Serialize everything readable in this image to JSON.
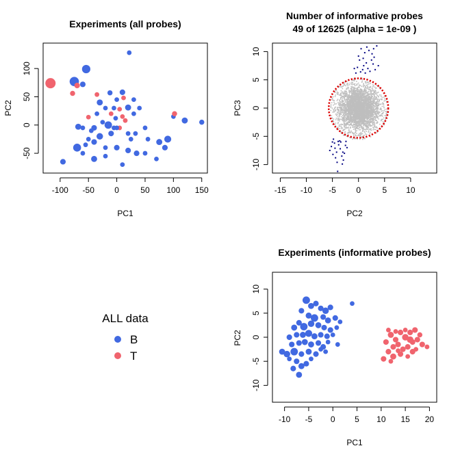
{
  "colors": {
    "B": "#4169E1",
    "T": "#F0646E",
    "probe_bg": "#BEBEBE",
    "probe_hi": "#000080",
    "circle": "#DD0000"
  },
  "chart_data": [
    {
      "id": "p1",
      "type": "scatter",
      "title": "Experiments (all probes)",
      "xlabel": "PC1",
      "ylabel": "PC2",
      "xlim": [
        -130,
        160
      ],
      "ylim": [
        -85,
        145
      ],
      "xticks": [
        "-100",
        "-50",
        "0",
        "50",
        "100",
        "150"
      ],
      "yticks": [
        "-50",
        "0",
        "50",
        "100"
      ],
      "points": [
        {
          "x": -117,
          "y": 74,
          "c": "T",
          "s": 2.2
        },
        {
          "x": -75,
          "y": 77,
          "c": "B",
          "s": 2.0
        },
        {
          "x": -54,
          "y": 99,
          "c": "B",
          "s": 1.8
        },
        {
          "x": -70,
          "y": 70,
          "c": "T",
          "s": 1.2
        },
        {
          "x": -60,
          "y": 72,
          "c": "B",
          "s": 1.2
        },
        {
          "x": -78,
          "y": 56,
          "c": "T",
          "s": 1.1
        },
        {
          "x": -68,
          "y": -3,
          "c": "B",
          "s": 1.3
        },
        {
          "x": -50,
          "y": 14,
          "c": "T",
          "s": 1.0
        },
        {
          "x": -35,
          "y": 54,
          "c": "T",
          "s": 1.0
        },
        {
          "x": -30,
          "y": 40,
          "c": "B",
          "s": 1.3
        },
        {
          "x": -12,
          "y": 57,
          "c": "B",
          "s": 1.1
        },
        {
          "x": 0,
          "y": 45,
          "c": "B",
          "s": 1.0
        },
        {
          "x": 12,
          "y": 48,
          "c": "T",
          "s": 1.0
        },
        {
          "x": 22,
          "y": 128,
          "c": "B",
          "s": 1.0
        },
        {
          "x": 10,
          "y": 58,
          "c": "B",
          "s": 1.2
        },
        {
          "x": 30,
          "y": 45,
          "c": "B",
          "s": 1.0
        },
        {
          "x": -20,
          "y": 30,
          "c": "B",
          "s": 1.0
        },
        {
          "x": 5,
          "y": 28,
          "c": "T",
          "s": 1.0
        },
        {
          "x": 20,
          "y": 31,
          "c": "B",
          "s": 1.3
        },
        {
          "x": -10,
          "y": 20,
          "c": "T",
          "s": 1.0
        },
        {
          "x": -2,
          "y": 12,
          "c": "B",
          "s": 1.0
        },
        {
          "x": 10,
          "y": 15,
          "c": "T",
          "s": 1.0
        },
        {
          "x": 15,
          "y": 8,
          "c": "T",
          "s": 1.0
        },
        {
          "x": 30,
          "y": 20,
          "c": "B",
          "s": 1.0
        },
        {
          "x": -25,
          "y": 5,
          "c": "B",
          "s": 1.0
        },
        {
          "x": -40,
          "y": -5,
          "c": "B",
          "s": 1.2
        },
        {
          "x": -30,
          "y": -20,
          "c": "B",
          "s": 1.4
        },
        {
          "x": -10,
          "y": -15,
          "c": "B",
          "s": 1.2
        },
        {
          "x": 5,
          "y": -5,
          "c": "T",
          "s": 1.0
        },
        {
          "x": 20,
          "y": -15,
          "c": "B",
          "s": 1.0
        },
        {
          "x": -5,
          "y": -5,
          "c": "B",
          "s": 1.0
        },
        {
          "x": -15,
          "y": 0,
          "c": "B",
          "s": 1.6
        },
        {
          "x": -40,
          "y": -30,
          "c": "B",
          "s": 1.2
        },
        {
          "x": -50,
          "y": -25,
          "c": "B",
          "s": 1.0
        },
        {
          "x": -70,
          "y": -40,
          "c": "B",
          "s": 1.7
        },
        {
          "x": -95,
          "y": -65,
          "c": "B",
          "s": 1.2
        },
        {
          "x": -60,
          "y": -50,
          "c": "B",
          "s": 1.0
        },
        {
          "x": -40,
          "y": -60,
          "c": "B",
          "s": 1.3
        },
        {
          "x": -20,
          "y": -55,
          "c": "B",
          "s": 1.0
        },
        {
          "x": 0,
          "y": -40,
          "c": "B",
          "s": 1.2
        },
        {
          "x": 10,
          "y": -70,
          "c": "B",
          "s": 1.0
        },
        {
          "x": 20,
          "y": -45,
          "c": "B",
          "s": 1.2
        },
        {
          "x": 35,
          "y": -50,
          "c": "B",
          "s": 1.2
        },
        {
          "x": 33,
          "y": -15,
          "c": "B",
          "s": 1.0
        },
        {
          "x": 50,
          "y": -5,
          "c": "B",
          "s": 1.0
        },
        {
          "x": 55,
          "y": -25,
          "c": "B",
          "s": 1.0
        },
        {
          "x": 75,
          "y": -30,
          "c": "B",
          "s": 1.3
        },
        {
          "x": 90,
          "y": -25,
          "c": "B",
          "s": 1.5
        },
        {
          "x": 85,
          "y": -40,
          "c": "B",
          "s": 1.2
        },
        {
          "x": 70,
          "y": -60,
          "c": "B",
          "s": 1.0
        },
        {
          "x": 100,
          "y": 15,
          "c": "B",
          "s": 1.0
        },
        {
          "x": 102,
          "y": 20,
          "c": "T",
          "s": 1.1
        },
        {
          "x": 120,
          "y": 8,
          "c": "B",
          "s": 1.3
        },
        {
          "x": 150,
          "y": 5,
          "c": "B",
          "s": 1.1
        },
        {
          "x": -55,
          "y": -35,
          "c": "B",
          "s": 1.0
        },
        {
          "x": -20,
          "y": -40,
          "c": "B",
          "s": 1.0
        },
        {
          "x": -45,
          "y": -10,
          "c": "B",
          "s": 1.0
        },
        {
          "x": -5,
          "y": 30,
          "c": "B",
          "s": 1.0
        },
        {
          "x": 40,
          "y": 30,
          "c": "B",
          "s": 1.0
        },
        {
          "x": 50,
          "y": -50,
          "c": "B",
          "s": 1.0
        },
        {
          "x": 25,
          "y": -25,
          "c": "B",
          "s": 1.0
        },
        {
          "x": -35,
          "y": 20,
          "c": "B",
          "s": 1.0
        },
        {
          "x": -60,
          "y": -5,
          "c": "B",
          "s": 1.0
        },
        {
          "x": 0,
          "y": -5,
          "c": "B",
          "s": 1.0
        }
      ]
    },
    {
      "id": "p2",
      "type": "scatter",
      "title": "Number of informative probes",
      "subtitle": "49 of 12625 (alpha = 1e-09 )",
      "xlabel": "PC2",
      "ylabel": "PC3",
      "xlim": [
        -16.5,
        15
      ],
      "ylim": [
        -11.5,
        11.5
      ],
      "xticks": [
        "-15",
        "-10",
        "-5",
        "0",
        "5",
        "10"
      ],
      "yticks": [
        "-10",
        "-5",
        "0",
        "5",
        "10"
      ],
      "circle": {
        "cx": 0,
        "cy": 0,
        "r": 5.7
      },
      "grey_cloud": {
        "n": 12576,
        "sd_x": 2.0,
        "sd_y": 2.0
      },
      "outliers": [
        {
          "x": 0.5,
          "y": 10.5
        },
        {
          "x": 1.2,
          "y": 9.8
        },
        {
          "x": 2.0,
          "y": 10.2
        },
        {
          "x": 3.5,
          "y": 11.0
        },
        {
          "x": 0.2,
          "y": 8.5
        },
        {
          "x": 1.5,
          "y": 8.0
        },
        {
          "x": 2.5,
          "y": 8.5
        },
        {
          "x": 3.0,
          "y": 9.0
        },
        {
          "x": -0.2,
          "y": 7.2
        },
        {
          "x": 0.8,
          "y": 6.8
        },
        {
          "x": 1.8,
          "y": 7.0
        },
        {
          "x": 2.2,
          "y": 6.5
        },
        {
          "x": -0.5,
          "y": 6.2
        },
        {
          "x": 1.0,
          "y": 7.5
        },
        {
          "x": 2.8,
          "y": 7.8
        },
        {
          "x": 3.2,
          "y": 6.8
        },
        {
          "x": 0.0,
          "y": 9.2
        },
        {
          "x": 1.6,
          "y": 10.8
        },
        {
          "x": 2.9,
          "y": 10.5
        },
        {
          "x": -0.8,
          "y": 7.0
        },
        {
          "x": 0.4,
          "y": 6.4
        },
        {
          "x": 1.3,
          "y": 6.2
        },
        {
          "x": 2.6,
          "y": 9.6
        },
        {
          "x": 3.8,
          "y": 7.5
        },
        {
          "x": 0.9,
          "y": 8.8
        },
        {
          "x": -4.0,
          "y": -11.2
        },
        {
          "x": -5.2,
          "y": -6.8
        },
        {
          "x": -4.6,
          "y": -6.2
        },
        {
          "x": -3.8,
          "y": -6.5
        },
        {
          "x": -3.5,
          "y": -7.2
        },
        {
          "x": -4.2,
          "y": -7.8
        },
        {
          "x": -3.2,
          "y": -8.5
        },
        {
          "x": -2.9,
          "y": -9.2
        },
        {
          "x": -4.8,
          "y": -5.5
        },
        {
          "x": -3.6,
          "y": -5.8
        },
        {
          "x": -2.5,
          "y": -6.6
        },
        {
          "x": -5.5,
          "y": -7.5
        },
        {
          "x": -3.0,
          "y": -7.8
        },
        {
          "x": -4.4,
          "y": -8.8
        },
        {
          "x": -2.2,
          "y": -7.0
        },
        {
          "x": -5.0,
          "y": -6.0
        },
        {
          "x": -3.4,
          "y": -6.0
        },
        {
          "x": -4.1,
          "y": -9.6
        },
        {
          "x": -2.7,
          "y": -8.0
        },
        {
          "x": -4.9,
          "y": -8.2
        },
        {
          "x": -3.9,
          "y": -5.9
        },
        {
          "x": -2.4,
          "y": -5.9
        },
        {
          "x": -3.1,
          "y": -9.9
        },
        {
          "x": -4.5,
          "y": -7.1
        }
      ]
    },
    {
      "id": "p3",
      "type": "scatter",
      "title": "Experiments (informative probes)",
      "xlabel": "PC1",
      "ylabel": "PC2",
      "xlim": [
        -12.5,
        21.5
      ],
      "ylim": [
        -13.5,
        13.5
      ],
      "xticks": [
        "-10",
        "-5",
        "0",
        "5",
        "10",
        "15",
        "20"
      ],
      "yticks": [
        "-10",
        "-5",
        "0",
        "5",
        "10"
      ],
      "points": [
        {
          "x": -5.5,
          "y": 7.7,
          "c": "B",
          "s": 1.6
        },
        {
          "x": -4.5,
          "y": 6.5,
          "c": "B",
          "s": 1.3
        },
        {
          "x": -3.5,
          "y": 7.0,
          "c": "B",
          "s": 1.2
        },
        {
          "x": -2.5,
          "y": 6.0,
          "c": "B",
          "s": 1.2
        },
        {
          "x": -1.5,
          "y": 5.5,
          "c": "B",
          "s": 1.4
        },
        {
          "x": -0.5,
          "y": 6.2,
          "c": "B",
          "s": 1.2
        },
        {
          "x": 4.0,
          "y": 7.0,
          "c": "B",
          "s": 1.0
        },
        {
          "x": -6.5,
          "y": 5.5,
          "c": "B",
          "s": 1.2
        },
        {
          "x": -5.0,
          "y": 4.5,
          "c": "B",
          "s": 1.3
        },
        {
          "x": -3.8,
          "y": 4.0,
          "c": "B",
          "s": 1.6
        },
        {
          "x": -2.0,
          "y": 4.2,
          "c": "B",
          "s": 1.2
        },
        {
          "x": -1.0,
          "y": 3.5,
          "c": "B",
          "s": 1.3
        },
        {
          "x": 0.5,
          "y": 4.0,
          "c": "B",
          "s": 1.2
        },
        {
          "x": 1.5,
          "y": 3.2,
          "c": "B",
          "s": 1.0
        },
        {
          "x": -7.0,
          "y": 3.0,
          "c": "B",
          "s": 1.2
        },
        {
          "x": -8.0,
          "y": 2.0,
          "c": "B",
          "s": 1.3
        },
        {
          "x": -6.0,
          "y": 2.2,
          "c": "B",
          "s": 1.6
        },
        {
          "x": -4.5,
          "y": 2.8,
          "c": "B",
          "s": 1.4
        },
        {
          "x": -3.0,
          "y": 2.5,
          "c": "B",
          "s": 1.3
        },
        {
          "x": -1.8,
          "y": 2.0,
          "c": "B",
          "s": 1.2
        },
        {
          "x": -0.5,
          "y": 1.5,
          "c": "B",
          "s": 1.2
        },
        {
          "x": 0.8,
          "y": 2.0,
          "c": "B",
          "s": 1.0
        },
        {
          "x": -9.0,
          "y": 0.0,
          "c": "B",
          "s": 1.2
        },
        {
          "x": -7.5,
          "y": 0.5,
          "c": "B",
          "s": 1.2
        },
        {
          "x": -6.2,
          "y": 0.5,
          "c": "B",
          "s": 1.3
        },
        {
          "x": -5.0,
          "y": 0.8,
          "c": "B",
          "s": 1.5
        },
        {
          "x": -3.8,
          "y": 0.2,
          "c": "B",
          "s": 1.3
        },
        {
          "x": -2.5,
          "y": 0.5,
          "c": "B",
          "s": 1.2
        },
        {
          "x": -1.2,
          "y": 0.2,
          "c": "B",
          "s": 1.2
        },
        {
          "x": 0.0,
          "y": 0.5,
          "c": "B",
          "s": 1.0
        },
        {
          "x": -8.5,
          "y": -1.5,
          "c": "B",
          "s": 1.2
        },
        {
          "x": -7.0,
          "y": -1.2,
          "c": "B",
          "s": 1.2
        },
        {
          "x": -5.8,
          "y": -1.0,
          "c": "B",
          "s": 1.3
        },
        {
          "x": -4.5,
          "y": -1.5,
          "c": "B",
          "s": 1.3
        },
        {
          "x": -3.0,
          "y": -1.2,
          "c": "B",
          "s": 1.2
        },
        {
          "x": -2.0,
          "y": -2.0,
          "c": "B",
          "s": 1.2
        },
        {
          "x": -1.0,
          "y": -1.0,
          "c": "B",
          "s": 1.0
        },
        {
          "x": -10.5,
          "y": -3.0,
          "c": "B",
          "s": 1.3
        },
        {
          "x": -9.5,
          "y": -3.5,
          "c": "B",
          "s": 1.4
        },
        {
          "x": -8.0,
          "y": -3.0,
          "c": "B",
          "s": 1.6
        },
        {
          "x": -6.5,
          "y": -3.5,
          "c": "B",
          "s": 1.2
        },
        {
          "x": -5.0,
          "y": -3.0,
          "c": "B",
          "s": 1.3
        },
        {
          "x": -3.5,
          "y": -3.5,
          "c": "B",
          "s": 1.2
        },
        {
          "x": -2.5,
          "y": -2.5,
          "c": "B",
          "s": 1.0
        },
        {
          "x": -7.5,
          "y": -5.0,
          "c": "B",
          "s": 1.2
        },
        {
          "x": -6.5,
          "y": -6.0,
          "c": "B",
          "s": 1.3
        },
        {
          "x": -5.5,
          "y": -5.5,
          "c": "B",
          "s": 1.2
        },
        {
          "x": -7.0,
          "y": -7.8,
          "c": "B",
          "s": 1.3
        },
        {
          "x": -8.2,
          "y": -6.5,
          "c": "B",
          "s": 1.2
        },
        {
          "x": -9.0,
          "y": -4.5,
          "c": "B",
          "s": 1.0
        },
        {
          "x": -4.5,
          "y": -4.5,
          "c": "B",
          "s": 1.0
        },
        {
          "x": -1.5,
          "y": -3.0,
          "c": "B",
          "s": 1.0
        },
        {
          "x": 1.0,
          "y": -1.5,
          "c": "B",
          "s": 1.0
        },
        {
          "x": 11.0,
          "y": -1.0,
          "c": "T",
          "s": 1.2
        },
        {
          "x": 12.0,
          "y": 0.5,
          "c": "T",
          "s": 1.3
        },
        {
          "x": 13.0,
          "y": -0.5,
          "c": "T",
          "s": 1.2
        },
        {
          "x": 14.0,
          "y": 1.0,
          "c": "T",
          "s": 1.2
        },
        {
          "x": 15.0,
          "y": 0.0,
          "c": "T",
          "s": 1.4
        },
        {
          "x": 16.0,
          "y": 1.0,
          "c": "T",
          "s": 1.2
        },
        {
          "x": 17.0,
          "y": 1.5,
          "c": "T",
          "s": 1.2
        },
        {
          "x": 18.0,
          "y": 0.5,
          "c": "T",
          "s": 1.1
        },
        {
          "x": 12.5,
          "y": -2.0,
          "c": "T",
          "s": 1.2
        },
        {
          "x": 13.5,
          "y": -1.5,
          "c": "T",
          "s": 1.2
        },
        {
          "x": 14.5,
          "y": -2.5,
          "c": "T",
          "s": 1.2
        },
        {
          "x": 15.5,
          "y": -2.0,
          "c": "T",
          "s": 1.2
        },
        {
          "x": 16.5,
          "y": -1.0,
          "c": "T",
          "s": 1.2
        },
        {
          "x": 17.5,
          "y": -0.5,
          "c": "T",
          "s": 1.2
        },
        {
          "x": 18.5,
          "y": -1.5,
          "c": "T",
          "s": 1.2
        },
        {
          "x": 19.5,
          "y": -2.0,
          "c": "T",
          "s": 1.0
        },
        {
          "x": 11.5,
          "y": -3.0,
          "c": "T",
          "s": 1.2
        },
        {
          "x": 12.5,
          "y": -4.0,
          "c": "T",
          "s": 1.3
        },
        {
          "x": 14.0,
          "y": -3.5,
          "c": "T",
          "s": 1.2
        },
        {
          "x": 15.5,
          "y": -4.0,
          "c": "T",
          "s": 1.0
        },
        {
          "x": 16.5,
          "y": -3.0,
          "c": "T",
          "s": 1.2
        },
        {
          "x": 10.5,
          "y": -4.5,
          "c": "T",
          "s": 1.2
        },
        {
          "x": 11.5,
          "y": 1.5,
          "c": "T",
          "s": 1.0
        },
        {
          "x": 13.0,
          "y": 1.2,
          "c": "T",
          "s": 1.0
        },
        {
          "x": 16.0,
          "y": -0.5,
          "c": "T",
          "s": 1.4
        },
        {
          "x": 17.2,
          "y": -2.5,
          "c": "T",
          "s": 1.0
        },
        {
          "x": 12.0,
          "y": -5.0,
          "c": "T",
          "s": 1.0
        },
        {
          "x": 15.0,
          "y": 1.5,
          "c": "T",
          "s": 1.0
        },
        {
          "x": 13.5,
          "y": -2.8,
          "c": "T",
          "s": 1.0
        }
      ]
    }
  ],
  "legend": {
    "title": "ALL data",
    "items": [
      {
        "label": "B",
        "c": "B"
      },
      {
        "label": "T",
        "c": "T"
      }
    ]
  }
}
